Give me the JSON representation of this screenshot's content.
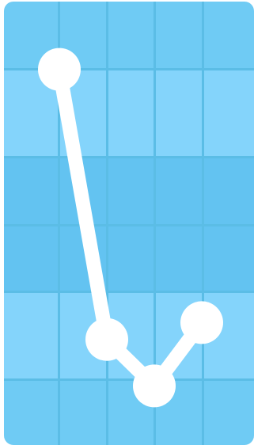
{
  "chart_data": {
    "type": "line",
    "title": "",
    "xlabel": "",
    "ylabel": "",
    "x": [
      1,
      2,
      3,
      4
    ],
    "values": [
      0.89,
      0.25,
      0.14,
      0.29
    ],
    "ylim": [
      0,
      1
    ],
    "grid": true
  },
  "colors": {
    "band_light": "#84d4fb",
    "band_mid": "#6fcbf4",
    "band_dark": "#63c3f1",
    "gridline": "#5bbde6",
    "line": "#ffffff"
  }
}
